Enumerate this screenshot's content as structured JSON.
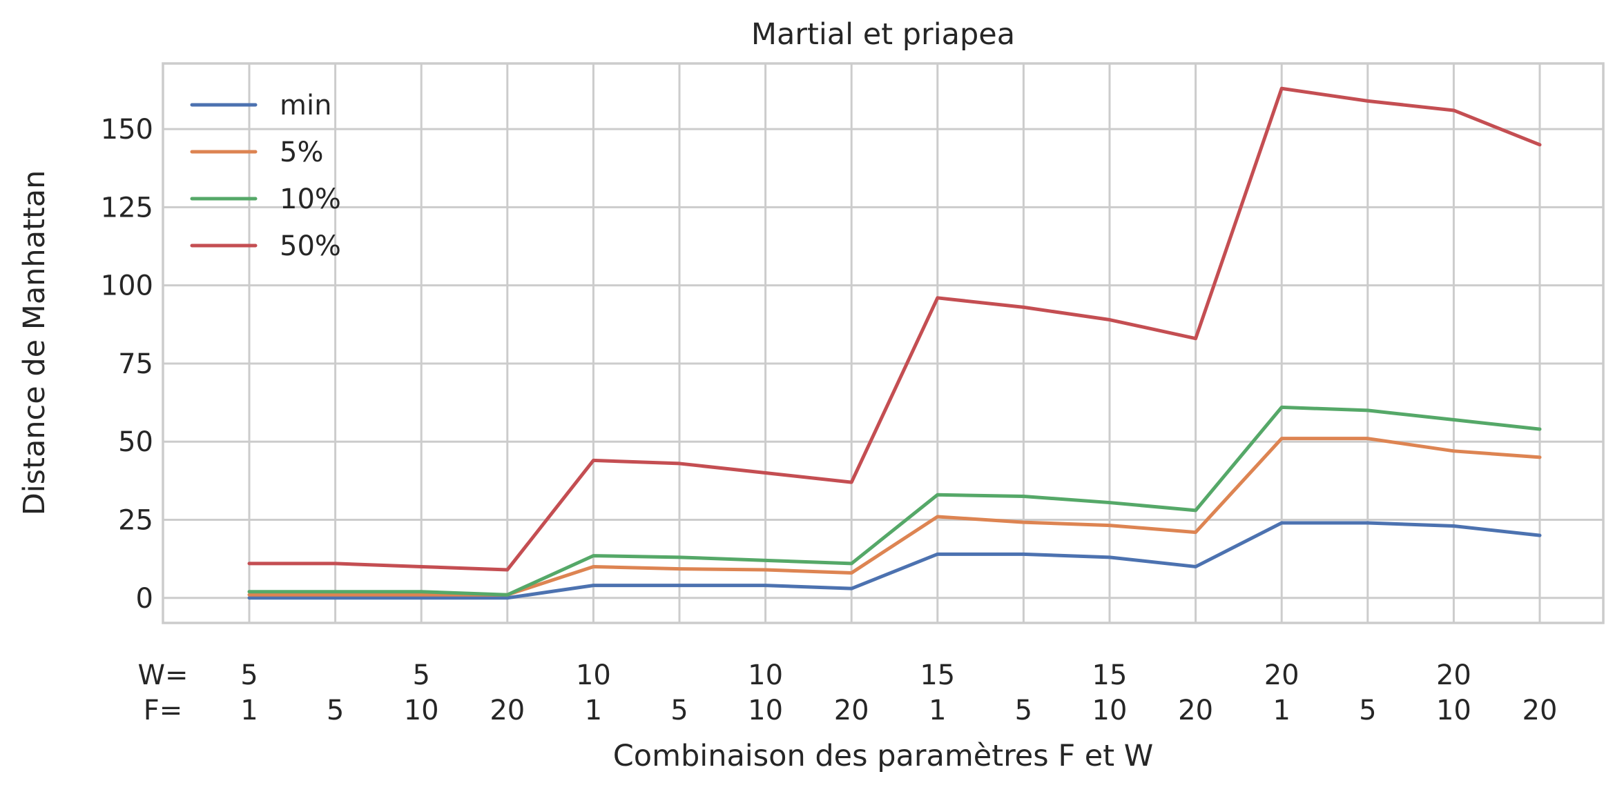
{
  "chart_data": {
    "type": "line",
    "title": "Martial et priapea",
    "xlabel": "Combinaison des paramètres F et W",
    "ylabel": "Distance de Manhattan",
    "row_label_w": "W=",
    "row_label_f": "F=",
    "w_row": [
      "5",
      "",
      "5",
      "",
      "10",
      "",
      "10",
      "",
      "15",
      "",
      "15",
      "",
      "20",
      "",
      "20",
      ""
    ],
    "f_row": [
      "1",
      "5",
      "10",
      "20",
      "1",
      "5",
      "10",
      "20",
      "1",
      "5",
      "10",
      "20",
      "1",
      "5",
      "10",
      "20"
    ],
    "yticks": [
      0,
      25,
      50,
      75,
      100,
      125,
      150
    ],
    "ylim": [
      -8,
      171
    ],
    "grid": true,
    "legend_position": "top-left",
    "series": [
      {
        "name": "min",
        "color": "#4c72b0",
        "values": [
          0,
          0,
          0,
          0,
          4,
          4,
          4,
          3,
          14,
          14,
          13,
          10,
          24,
          24,
          23,
          20
        ]
      },
      {
        "name": "5%",
        "color": "#dd8452",
        "values": [
          1,
          1,
          1,
          1,
          10,
          9.3,
          9,
          8,
          26,
          24.2,
          23.2,
          21,
          51,
          51,
          47,
          45
        ]
      },
      {
        "name": "10%",
        "color": "#55a868",
        "values": [
          2,
          2,
          2,
          1,
          13.5,
          13,
          12,
          11,
          33,
          32.5,
          30.5,
          28,
          61,
          60,
          57,
          54
        ]
      },
      {
        "name": "50%",
        "color": "#c44e52",
        "values": [
          11,
          11,
          10,
          9,
          44,
          43,
          40,
          37,
          96,
          93,
          89,
          83,
          163,
          159,
          156,
          145
        ]
      }
    ]
  }
}
